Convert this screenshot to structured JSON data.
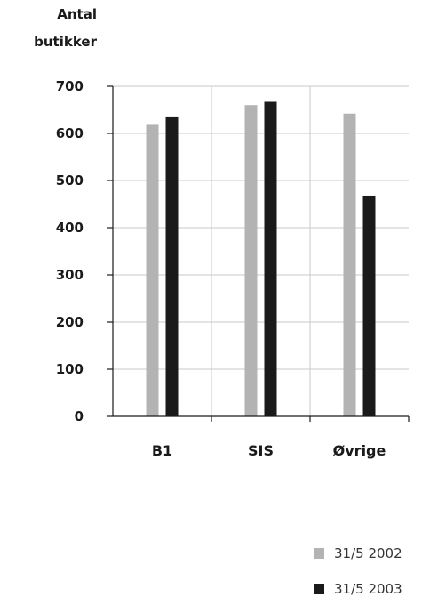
{
  "chart_data": {
    "type": "bar",
    "ylabel": [
      "Antal",
      "butikker"
    ],
    "categories": [
      "B1",
      "SIS",
      "Øvrige"
    ],
    "series": [
      {
        "name": "31/5 2002",
        "values": [
          620,
          660,
          642
        ],
        "color": "#b3b3b3"
      },
      {
        "name": "31/5 2003",
        "values": [
          636,
          667,
          468
        ],
        "color": "#1a1a1a"
      }
    ],
    "ylim": [
      0,
      700
    ],
    "yticks": [
      0,
      100,
      200,
      300,
      400,
      500,
      600,
      700
    ],
    "grid": true,
    "legend_position": "bottom-right"
  }
}
